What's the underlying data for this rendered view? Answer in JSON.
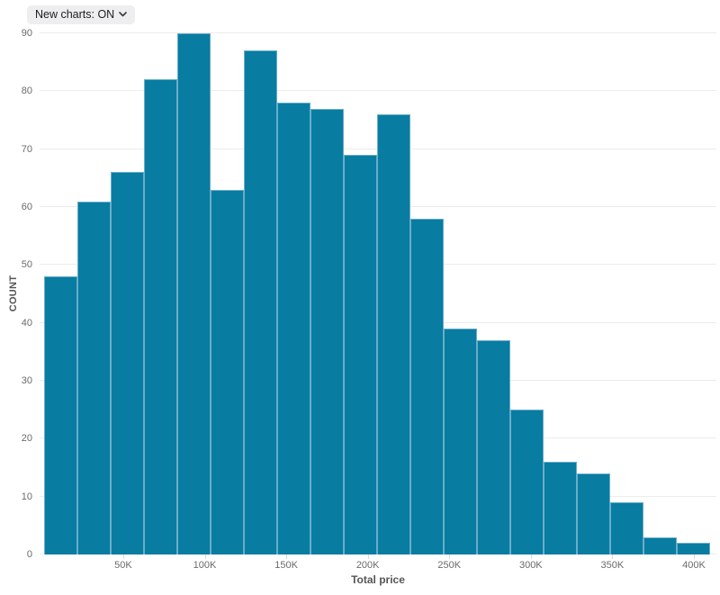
{
  "controls": {
    "new_charts_label": "New charts: ON"
  },
  "chart_data": {
    "type": "bar",
    "subtype": "histogram",
    "title": "",
    "xlabel": "Total price",
    "ylabel": "COUNT",
    "ylim": [
      0,
      90
    ],
    "grid": true,
    "legend": false,
    "bin_width": 20000,
    "categories": [
      "0-20K",
      "20-40K",
      "40-60K",
      "60-80K",
      "80-100K",
      "100-120K",
      "120-140K",
      "140-160K",
      "160-180K",
      "180-200K",
      "200-220K",
      "220-240K",
      "240-260K",
      "260-280K",
      "280-300K",
      "300-320K",
      "320-340K",
      "340-360K",
      "360-380K",
      "380-400K"
    ],
    "values": [
      48,
      61,
      66,
      82,
      90,
      63,
      87,
      78,
      77,
      69,
      76,
      58,
      39,
      37,
      25,
      16,
      14,
      9,
      3,
      2
    ],
    "y_ticks": [
      0,
      10,
      20,
      30,
      40,
      50,
      60,
      70,
      80,
      90
    ],
    "x_ticks": [
      {
        "value": 50000,
        "label": "50K"
      },
      {
        "value": 100000,
        "label": "100K"
      },
      {
        "value": 150000,
        "label": "150K"
      },
      {
        "value": 200000,
        "label": "200K"
      },
      {
        "value": 250000,
        "label": "250K"
      },
      {
        "value": 300000,
        "label": "300K"
      },
      {
        "value": 350000,
        "label": "350K"
      },
      {
        "value": 400000,
        "label": "400K"
      }
    ],
    "colors": {
      "bar_fill": "#087ca1",
      "bar_border": "#6aadca",
      "gridline": "#ececec",
      "tick_text": "#6b6b6b",
      "axis_title_text": "#555555",
      "pill_background": "#eeeef0",
      "pill_text": "#1c1c1e"
    }
  }
}
